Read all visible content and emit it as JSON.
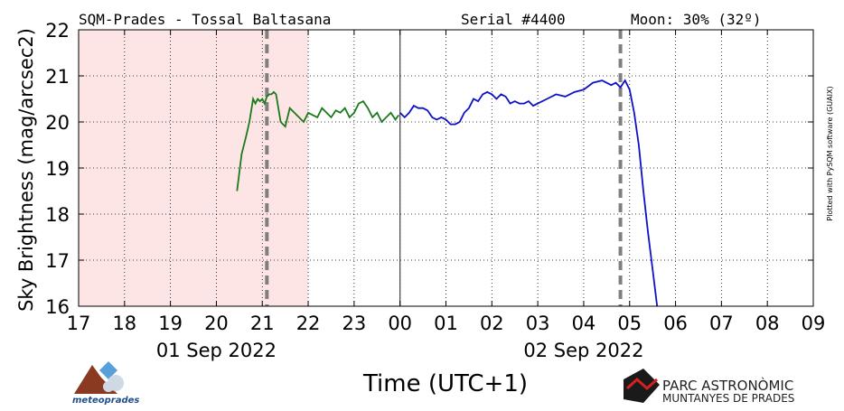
{
  "header": {
    "site": "SQM-Prades - Tossal Baltasana",
    "serial": "Serial #4400",
    "moon": "Moon: 30% (32º)"
  },
  "credit": "Plotted with PySQM software (GUAIX)",
  "logos": {
    "left": "meteoprades",
    "right_line1": "PARC ASTRONÒMIC",
    "right_line2": "MUNTANYES DE PRADES"
  },
  "colors": {
    "twilight_band": "#fde5e5",
    "evening_series": "#1a7a1a",
    "morning_series": "#1010c8",
    "marker": "#7f7f7f"
  },
  "chart_data": {
    "type": "line",
    "title": "",
    "xlabel": "Time (UTC+1)",
    "ylabel": "Sky Brightness (mag/arcsec2)",
    "ylim": [
      16,
      22
    ],
    "yticks": [
      "16",
      "17",
      "18",
      "19",
      "20",
      "21",
      "22"
    ],
    "xlim": [
      17,
      33
    ],
    "xticks": [
      "17",
      "18",
      "19",
      "20",
      "21",
      "22",
      "23",
      "00",
      "01",
      "02",
      "03",
      "04",
      "05",
      "06",
      "07",
      "08",
      "09"
    ],
    "date_labels": [
      {
        "text": "01 Sep 2022",
        "x": 20
      },
      {
        "text": "02 Sep 2022",
        "x": 28
      }
    ],
    "grid": true,
    "shaded_region": [
      17,
      22
    ],
    "vertical_markers": [
      21.1,
      28.8
    ],
    "midnight_line": 24,
    "series": [
      {
        "date": "01 Sep 2022",
        "color": "green",
        "x": [
          20.45,
          20.55,
          20.65,
          20.72,
          20.8,
          20.85,
          20.9,
          20.95,
          21.0,
          21.05,
          21.1,
          21.15,
          21.2,
          21.25,
          21.3,
          21.4,
          21.5,
          21.55,
          21.6,
          21.7,
          21.8,
          21.9,
          22.0,
          22.1,
          22.2,
          22.3,
          22.4,
          22.5,
          22.6,
          22.7,
          22.8,
          22.9,
          23.0,
          23.1,
          23.2,
          23.3,
          23.4,
          23.5,
          23.6,
          23.7,
          23.8,
          23.9,
          23.97
        ],
        "y": [
          18.5,
          19.3,
          19.7,
          20.0,
          20.5,
          20.4,
          20.5,
          20.45,
          20.5,
          20.4,
          20.55,
          20.6,
          20.6,
          20.65,
          20.6,
          20.0,
          19.9,
          20.1,
          20.3,
          20.2,
          20.1,
          20.0,
          20.2,
          20.15,
          20.1,
          20.3,
          20.2,
          20.1,
          20.25,
          20.2,
          20.3,
          20.1,
          20.2,
          20.4,
          20.45,
          20.3,
          20.1,
          20.2,
          20.0,
          20.1,
          20.2,
          20.05,
          20.15
        ]
      },
      {
        "date": "02 Sep 2022",
        "color": "blue",
        "x": [
          24.0,
          24.1,
          24.2,
          24.3,
          24.4,
          24.5,
          24.6,
          24.7,
          24.8,
          24.9,
          25.0,
          25.1,
          25.2,
          25.3,
          25.4,
          25.5,
          25.6,
          25.7,
          25.8,
          25.9,
          26.0,
          26.1,
          26.2,
          26.3,
          26.4,
          26.5,
          26.6,
          26.7,
          26.8,
          26.9,
          27.0,
          27.2,
          27.4,
          27.6,
          27.8,
          28.0,
          28.2,
          28.4,
          28.6,
          28.7,
          28.8,
          28.9,
          29.0,
          29.1,
          29.2,
          29.3,
          29.4,
          29.5,
          29.6,
          29.7
        ],
        "y": [
          20.2,
          20.1,
          20.2,
          20.35,
          20.3,
          20.3,
          20.25,
          20.1,
          20.05,
          20.1,
          20.05,
          19.95,
          19.95,
          20.0,
          20.2,
          20.3,
          20.5,
          20.45,
          20.6,
          20.65,
          20.6,
          20.5,
          20.6,
          20.55,
          20.4,
          20.45,
          20.4,
          20.4,
          20.45,
          20.35,
          20.4,
          20.5,
          20.6,
          20.55,
          20.65,
          20.7,
          20.85,
          20.9,
          20.8,
          20.85,
          20.75,
          20.9,
          20.7,
          20.2,
          19.5,
          18.5,
          17.6,
          16.8,
          16.0,
          15.5
        ]
      }
    ]
  }
}
